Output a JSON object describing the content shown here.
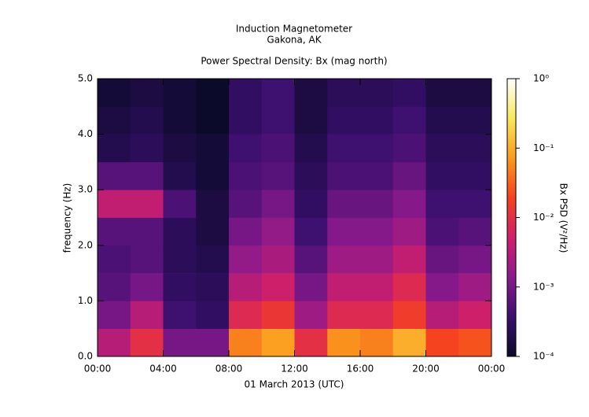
{
  "chart_data": {
    "type": "heatmap",
    "title": "Induction Magnetometer",
    "subtitle": "Gakona, AK",
    "plot_title": "Power Spectral Density: Bx (mag north)",
    "x_label": "01 March 2013 (UTC)",
    "y_label": "frequency (Hz)",
    "colorbar_label": "Bx PSD (V²/Hz)",
    "x": [
      1,
      3,
      5,
      7,
      9,
      11,
      13,
      15,
      17,
      19,
      21,
      23
    ],
    "y": [
      0.25,
      0.75,
      1.25,
      1.75,
      2.25,
      2.75,
      3.25,
      3.75,
      4.25,
      4.75
    ],
    "z": [
      [
        0.0032,
        0.01,
        0.001,
        0.001,
        0.05,
        0.08,
        0.01,
        0.063,
        0.05,
        0.1,
        0.02,
        0.025
      ],
      [
        0.001,
        0.0032,
        0.0004,
        0.0003,
        0.008,
        0.013,
        0.002,
        0.008,
        0.008,
        0.016,
        0.0032,
        0.005
      ],
      [
        0.0006,
        0.001,
        0.0003,
        0.00025,
        0.0032,
        0.005,
        0.001,
        0.004,
        0.004,
        0.008,
        0.0013,
        0.002
      ],
      [
        0.0005,
        0.0006,
        0.00025,
        0.0002,
        0.0016,
        0.0025,
        0.0006,
        0.002,
        0.002,
        0.004,
        0.0008,
        0.001
      ],
      [
        0.0006,
        0.0006,
        0.00025,
        0.00016,
        0.001,
        0.0016,
        0.0004,
        0.0013,
        0.0013,
        0.002,
        0.0005,
        0.0006
      ],
      [
        0.004,
        0.004,
        0.0005,
        0.00016,
        0.0006,
        0.001,
        0.0003,
        0.0008,
        0.0008,
        0.0013,
        0.0004,
        0.0004
      ],
      [
        0.0006,
        0.0006,
        0.0002,
        0.00013,
        0.0005,
        0.0006,
        0.00025,
        0.0005,
        0.0005,
        0.0008,
        0.0003,
        0.0003
      ],
      [
        0.0002,
        0.00025,
        0.00016,
        0.00013,
        0.0004,
        0.0005,
        0.0002,
        0.0004,
        0.0004,
        0.0005,
        0.00025,
        0.00025
      ],
      [
        0.00016,
        0.0002,
        0.00013,
        0.0001,
        0.0003,
        0.0004,
        0.00016,
        0.0003,
        0.0003,
        0.0004,
        0.0002,
        0.0002
      ],
      [
        0.00013,
        0.00016,
        0.00013,
        0.0001,
        0.0003,
        0.0004,
        0.00016,
        0.00025,
        0.00025,
        0.0003,
        0.00016,
        0.00016
      ]
    ],
    "xlim": [
      0,
      24
    ],
    "xticks": [
      {
        "value": 0,
        "label": "00:00"
      },
      {
        "value": 4,
        "label": "04:00"
      },
      {
        "value": 8,
        "label": "08:00"
      },
      {
        "value": 12,
        "label": "12:00"
      },
      {
        "value": 16,
        "label": "16:00"
      },
      {
        "value": 20,
        "label": "20:00"
      },
      {
        "value": 24,
        "label": "00:00"
      }
    ],
    "ylim": [
      0,
      5
    ],
    "yticks": [
      {
        "value": 0,
        "label": "0.0"
      },
      {
        "value": 1,
        "label": "1.0"
      },
      {
        "value": 2,
        "label": "2.0"
      },
      {
        "value": 3,
        "label": "3.0"
      },
      {
        "value": 4,
        "label": "4.0"
      },
      {
        "value": 5,
        "label": "5.0"
      }
    ],
    "clim": [
      0.0001,
      1
    ],
    "cticks": [
      {
        "value": 0.0001,
        "label": "10⁻⁴"
      },
      {
        "value": 0.001,
        "label": "10⁻³"
      },
      {
        "value": 0.01,
        "label": "10⁻²"
      },
      {
        "value": 0.1,
        "label": "10⁻¹"
      },
      {
        "value": 1,
        "label": "10⁰"
      }
    ],
    "log_color_scale": true,
    "colorscale": [
      "#0b0a2a",
      "#3a0f6e",
      "#8a1a8c",
      "#d01f6a",
      "#f5411f",
      "#fb9a1c",
      "#f8e85a",
      "#ffffff"
    ]
  }
}
